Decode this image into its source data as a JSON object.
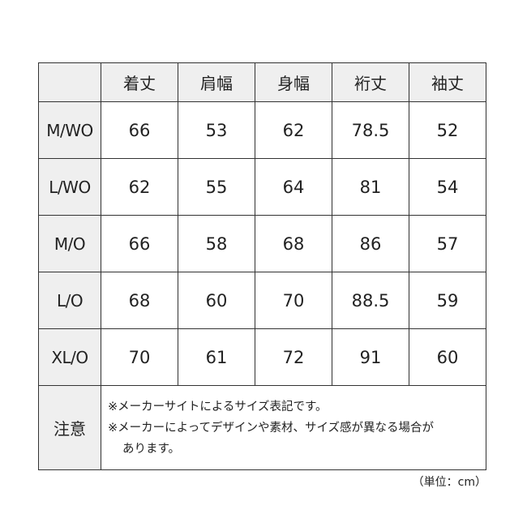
{
  "table": {
    "columns": [
      "",
      "着丈",
      "肩幅",
      "身幅",
      "裄丈",
      "袖丈"
    ],
    "rows": [
      {
        "size": "M/WO",
        "values": [
          "66",
          "53",
          "62",
          "78.5",
          "52"
        ]
      },
      {
        "size": "L/WO",
        "values": [
          "62",
          "55",
          "64",
          "81",
          "54"
        ]
      },
      {
        "size": "M/O",
        "values": [
          "66",
          "58",
          "68",
          "86",
          "57"
        ]
      },
      {
        "size": "L/O",
        "values": [
          "68",
          "60",
          "70",
          "88.5",
          "59"
        ]
      },
      {
        "size": "XL/O",
        "values": [
          "70",
          "61",
          "72",
          "91",
          "60"
        ]
      }
    ],
    "note": {
      "label": "注意",
      "lines": [
        "※メーカーサイトによるサイズ表記です。",
        "※メーカーによってデザインや素材、サイズ感が異なる場合が",
        "あります。"
      ]
    }
  },
  "unit": "（単位：cm）",
  "colors": {
    "header_bg": "#efefef",
    "border": "#333333"
  }
}
